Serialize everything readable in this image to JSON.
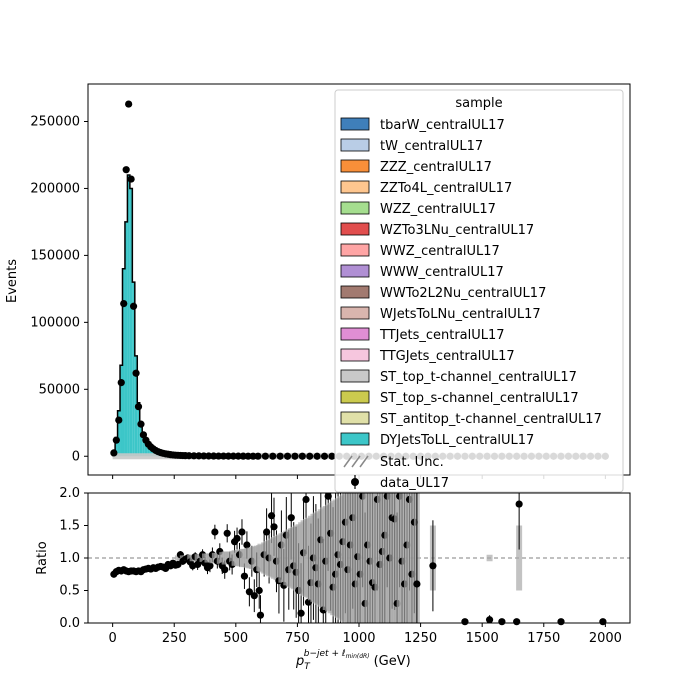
{
  "chart_data": [
    {
      "type": "bar",
      "ylabel": "Events",
      "xlim": [
        -100,
        2100
      ],
      "ylim": [
        -14000,
        278000
      ],
      "yticks": [
        0,
        50000,
        100000,
        150000,
        200000,
        250000
      ],
      "xticks": [
        0,
        250,
        500,
        750,
        1000,
        1250,
        1500,
        1750,
        2000
      ],
      "legend": {
        "title": "sample",
        "placement": "top-right",
        "entries": [
          {
            "name": "tbarW_centralUL17",
            "color": "#3f7fba"
          },
          {
            "name": "tW_centralUL17",
            "color": "#b9cde6"
          },
          {
            "name": "ZZZ_centralUL17",
            "color": "#f88f39"
          },
          {
            "name": "ZZTo4L_centralUL17",
            "color": "#fec68f"
          },
          {
            "name": "WZZ_centralUL17",
            "color": "#a5de8f"
          },
          {
            "name": "WZTo3LNu_centralUL17",
            "color": "#e14e4e"
          },
          {
            "name": "WWZ_centralUL17",
            "color": "#fea5a5"
          },
          {
            "name": "WWW_centralUL17",
            "color": "#b08fd4"
          },
          {
            "name": "WWTo2L2Nu_centralUL17",
            "color": "#a27a70"
          },
          {
            "name": "WJetsToLNu_centralUL17",
            "color": "#d9b5ae"
          },
          {
            "name": "TTJets_centralUL17",
            "color": "#e08ed4"
          },
          {
            "name": "TTGJets_centralUL17",
            "color": "#f6c6de"
          },
          {
            "name": "ST_top_t-channel_centralUL17",
            "color": "#c8c8c8"
          },
          {
            "name": "ST_top_s-channel_centralUL17",
            "color": "#cbca4e"
          },
          {
            "name": "ST_antitop_t-channel_centralUL17",
            "color": "#e0e0a8"
          },
          {
            "name": "DYJetsToLL_centralUL17",
            "color": "#3cc6c8"
          }
        ],
        "stat_unc_label": "Stat. Unc.",
        "data_label": "data_UL17"
      },
      "series": [
        {
          "name": "DYJetsToLL_centralUL17",
          "color": "#3cc6c8",
          "bin_width": 10,
          "x": [
            0,
            10,
            20,
            30,
            40,
            50,
            60,
            70,
            80,
            90,
            100,
            110,
            120,
            130,
            140,
            150,
            160,
            170,
            180,
            190,
            200,
            210,
            220,
            230,
            240,
            250,
            260,
            270,
            280,
            290
          ],
          "values": [
            3000,
            14000,
            34000,
            68000,
            140000,
            175000,
            210000,
            200000,
            130000,
            75000,
            40000,
            25000,
            16000,
            11000,
            8000,
            6000,
            4500,
            3500,
            2800,
            2200,
            1800,
            1500,
            1200,
            1000,
            850,
            700,
            600,
            500,
            450,
            400
          ]
        }
      ],
      "data": {
        "name": "data_UL17",
        "x": [
          5,
          15,
          25,
          35,
          45,
          55,
          65,
          75,
          85,
          95,
          105,
          115,
          125,
          135,
          145,
          155,
          165,
          175,
          185,
          195,
          205,
          215,
          225,
          235,
          245,
          255,
          265,
          275,
          285,
          295,
          310,
          330,
          350,
          370,
          390,
          410,
          430,
          450,
          470,
          490,
          510,
          530,
          550,
          570,
          590,
          620,
          650,
          680,
          710,
          740,
          770,
          800,
          830,
          860,
          890,
          920,
          950,
          980,
          1010,
          1040,
          1070,
          1100,
          1130,
          1160,
          1190,
          1220,
          1250,
          1280,
          1310,
          1340,
          1370,
          1400,
          1430,
          1460,
          1490,
          1520,
          1550,
          1580,
          1610,
          1640,
          1670,
          1700,
          1730,
          1760,
          1790,
          1820,
          1850,
          1880,
          1910,
          1940,
          1970,
          2000
        ],
        "y": [
          2500,
          12000,
          27000,
          55000,
          114000,
          214000,
          263000,
          207000,
          112000,
          62000,
          37000,
          24000,
          16000,
          12000,
          9000,
          7000,
          5500,
          4300,
          3400,
          2700,
          2200,
          1800,
          1500,
          1200,
          1000,
          800,
          700,
          600,
          500,
          450,
          380,
          320,
          270,
          230,
          200,
          170,
          150,
          130,
          110,
          95,
          85,
          75,
          65,
          55,
          48,
          40,
          34,
          28,
          24,
          20,
          17,
          14,
          12,
          10,
          9,
          8,
          7,
          6,
          5,
          4,
          4,
          3,
          3,
          2,
          2,
          2,
          2,
          1,
          1,
          1,
          1,
          1,
          1,
          1,
          1,
          1,
          1,
          1,
          1,
          1,
          1,
          1,
          0,
          0,
          0,
          0,
          0,
          0,
          0,
          0,
          0,
          0
        ]
      }
    },
    {
      "type": "scatter",
      "ylabel": "Ratio",
      "xlabel_main": "p",
      "xlabel_sub": "T",
      "xlabel_sup": "b−jet + ℓ",
      "xlabel_supsub": "min(dR)",
      "xlabel_unit": "(GeV)",
      "xlim": [
        -100,
        2100
      ],
      "ylim": [
        0,
        2
      ],
      "yticks": [
        "0.0",
        "0.5",
        "1.0",
        "1.5",
        "2.0"
      ],
      "xticks": [
        "0",
        "250",
        "500",
        "750",
        "1000",
        "1250",
        "1500",
        "1750",
        "2000"
      ],
      "reference_line": 1.0,
      "points": [
        [
          5,
          0.75,
          0.01
        ],
        [
          15,
          0.79,
          0.01
        ],
        [
          25,
          0.81,
          0.01
        ],
        [
          35,
          0.8,
          0.01
        ],
        [
          45,
          0.82,
          0.01
        ],
        [
          55,
          0.8,
          0.01
        ],
        [
          65,
          0.79,
          0.01
        ],
        [
          75,
          0.8,
          0.01
        ],
        [
          85,
          0.8,
          0.01
        ],
        [
          95,
          0.79,
          0.01
        ],
        [
          105,
          0.8,
          0.01
        ],
        [
          115,
          0.79,
          0.01
        ],
        [
          125,
          0.82,
          0.01
        ],
        [
          135,
          0.83,
          0.02
        ],
        [
          145,
          0.84,
          0.02
        ],
        [
          155,
          0.83,
          0.02
        ],
        [
          165,
          0.85,
          0.02
        ],
        [
          175,
          0.84,
          0.02
        ],
        [
          185,
          0.86,
          0.02
        ],
        [
          195,
          0.87,
          0.02
        ],
        [
          205,
          0.86,
          0.02
        ],
        [
          215,
          0.84,
          0.03
        ],
        [
          225,
          0.9,
          0.03
        ],
        [
          235,
          0.88,
          0.03
        ],
        [
          245,
          0.92,
          0.03
        ],
        [
          255,
          0.89,
          0.03
        ],
        [
          265,
          0.9,
          0.04
        ],
        [
          275,
          1.05,
          0.04
        ],
        [
          285,
          0.95,
          0.04
        ],
        [
          295,
          0.98,
          0.04
        ],
        [
          305,
          1.0,
          0.04
        ],
        [
          315,
          0.94,
          0.05
        ],
        [
          325,
          0.88,
          0.05
        ],
        [
          335,
          1.02,
          0.05
        ],
        [
          345,
          0.9,
          0.06
        ],
        [
          355,
          0.95,
          0.06
        ],
        [
          365,
          1.05,
          0.06
        ],
        [
          375,
          0.92,
          0.07
        ],
        [
          385,
          0.85,
          0.07
        ],
        [
          395,
          0.88,
          0.07
        ],
        [
          405,
          1.05,
          0.08
        ],
        [
          415,
          1.4,
          0.08
        ],
        [
          425,
          0.95,
          0.08
        ],
        [
          435,
          1.1,
          0.09
        ],
        [
          445,
          0.88,
          0.09
        ],
        [
          455,
          0.82,
          0.1
        ],
        [
          465,
          1.38,
          0.1
        ],
        [
          475,
          0.95,
          0.1
        ],
        [
          485,
          0.9,
          0.11
        ],
        [
          495,
          1.25,
          0.12
        ],
        [
          505,
          1.3,
          0.12
        ],
        [
          515,
          1.05,
          0.13
        ],
        [
          525,
          1.4,
          0.14
        ],
        [
          535,
          0.72,
          0.14
        ],
        [
          545,
          1.2,
          0.15
        ],
        [
          555,
          0.48,
          0.16
        ],
        [
          565,
          0.95,
          0.17
        ],
        [
          575,
          0.42,
          0.18
        ],
        [
          585,
          0.82,
          0.19
        ],
        [
          595,
          0.5,
          0.2
        ],
        [
          600,
          0.12,
          0.22
        ],
        [
          615,
          1.05,
          0.24
        ],
        [
          625,
          1.4,
          0.26
        ],
        [
          635,
          1.0,
          0.28
        ],
        [
          645,
          1.65,
          0.3
        ],
        [
          655,
          1.48,
          0.32
        ],
        [
          665,
          0.95,
          0.34
        ],
        [
          675,
          0.65,
          0.36
        ],
        [
          685,
          1.2,
          0.38
        ],
        [
          695,
          0.58,
          0.4
        ],
        [
          705,
          1.35,
          0.42
        ],
        [
          715,
          0.82,
          0.44
        ],
        [
          725,
          1.62,
          0.46
        ],
        [
          735,
          0.88,
          0.48
        ],
        [
          745,
          0.78,
          0.5
        ],
        [
          755,
          0.5,
          0.52
        ],
        [
          765,
          0.15,
          0.55
        ],
        [
          775,
          1.08,
          0.58
        ],
        [
          785,
          1.9,
          0.6
        ],
        [
          795,
          0.32,
          0.62
        ],
        [
          805,
          0.62,
          0.65
        ],
        [
          815,
          1.0,
          0.68
        ],
        [
          825,
          0.85,
          0.7
        ],
        [
          835,
          0.6,
          0.72
        ],
        [
          845,
          1.28,
          0.75
        ],
        [
          855,
          0.2,
          0.78
        ],
        [
          865,
          0.95,
          0.8
        ],
        [
          875,
          1.95,
          0.82
        ],
        [
          885,
          1.38,
          0.85
        ],
        [
          895,
          0.55,
          0.88
        ],
        [
          905,
          0.75,
          0.9
        ],
        [
          915,
          1.05,
          0.92
        ],
        [
          925,
          0.9,
          0.95
        ],
        [
          935,
          1.25,
          0.98
        ],
        [
          945,
          1.55,
          1.0
        ],
        [
          955,
          0.82,
          1.0
        ],
        [
          965,
          1.2,
          1.0
        ],
        [
          975,
          1.62,
          1.0
        ],
        [
          985,
          0.6,
          1.0
        ],
        [
          995,
          1.02,
          1.0
        ],
        [
          1005,
          0.75,
          1.0
        ],
        [
          1015,
          1.95,
          1.0
        ],
        [
          1025,
          0.3,
          1.0
        ],
        [
          1035,
          1.2,
          1.0
        ],
        [
          1045,
          0.95,
          1.0
        ],
        [
          1055,
          0.62,
          1.0
        ],
        [
          1065,
          0.55,
          1.0
        ],
        [
          1075,
          1.9,
          1.0
        ],
        [
          1085,
          0.9,
          1.0
        ],
        [
          1095,
          1.1,
          1.0
        ],
        [
          1105,
          1.35,
          1.0
        ],
        [
          1115,
          1.95,
          1.0
        ],
        [
          1125,
          1.0,
          1.0
        ],
        [
          1135,
          1.62,
          1.0
        ],
        [
          1145,
          1.6,
          1.0
        ],
        [
          1155,
          0.3,
          1.0
        ],
        [
          1165,
          1.95,
          1.0
        ],
        [
          1175,
          0.95,
          1.0
        ],
        [
          1185,
          0.6,
          1.0
        ],
        [
          1195,
          1.2,
          1.0
        ],
        [
          1205,
          1.9,
          1.0
        ],
        [
          1215,
          0.75,
          1.0
        ],
        [
          1225,
          1.55,
          1.0
        ],
        [
          1235,
          0.6,
          1.0
        ],
        [
          1300,
          0.88,
          0.5
        ],
        [
          1430,
          0.02,
          0.02
        ],
        [
          1530,
          0.05,
          0.05
        ],
        [
          1580,
          0.02,
          0.02
        ],
        [
          1640,
          0.02,
          0.02
        ],
        [
          1650,
          1.83,
          0.5
        ],
        [
          1820,
          0.02,
          0.02
        ],
        [
          1990,
          0.02,
          0.02
        ]
      ]
    }
  ]
}
